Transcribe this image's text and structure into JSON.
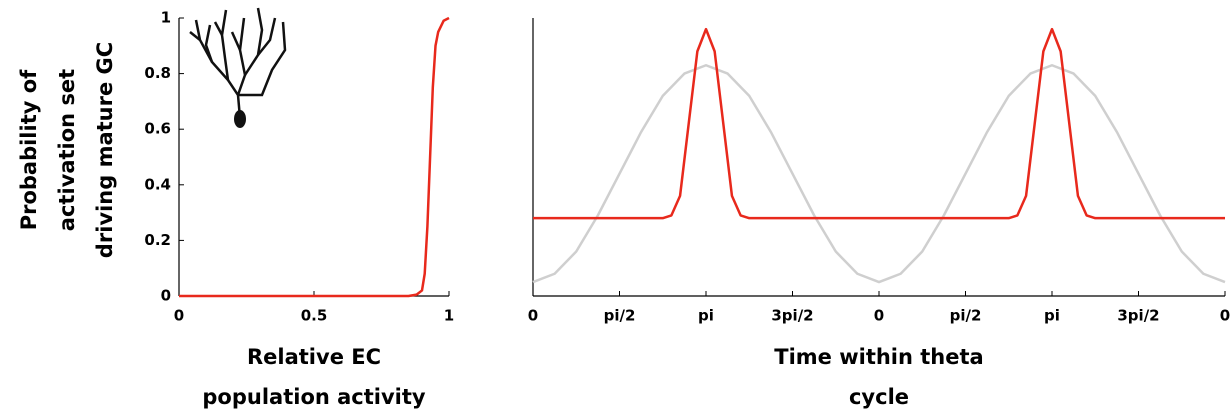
{
  "chart_data": [
    {
      "type": "line",
      "ylabel": [
        "Probability of",
        "activation set",
        "driving mature GC"
      ],
      "xlabel": [
        "Relative EC",
        "population activity"
      ],
      "xlim": [
        0,
        1
      ],
      "xticks": [
        0,
        0.5,
        1
      ],
      "ylim": [
        0,
        1
      ],
      "yticks": [
        0,
        0.2,
        0.4,
        0.6,
        0.8,
        1
      ],
      "grid": false,
      "series": [
        {
          "color": "#e8291c",
          "x": [
            0,
            0.85,
            0.88,
            0.9,
            0.91,
            0.92,
            0.93,
            0.94,
            0.95,
            0.96,
            0.98,
            1.0
          ],
          "values": [
            0,
            0,
            0.005,
            0.02,
            0.08,
            0.25,
            0.5,
            0.75,
            0.9,
            0.95,
            0.99,
            1.0
          ]
        }
      ]
    },
    {
      "type": "line",
      "xlabel": [
        "Time within theta",
        "cycle"
      ],
      "xlim": [
        0,
        8
      ],
      "xticks": [
        {
          "value": 0,
          "label": "0"
        },
        {
          "value": 1,
          "label": "pi/2"
        },
        {
          "value": 2,
          "label": "pi"
        },
        {
          "value": 3,
          "label": "3pi/2"
        },
        {
          "value": 4,
          "label": "0"
        },
        {
          "value": 5,
          "label": "pi/2"
        },
        {
          "value": 6,
          "label": "pi"
        },
        {
          "value": 7,
          "label": "3pi/2"
        },
        {
          "value": 8,
          "label": "0"
        }
      ],
      "ylim": [
        0,
        1
      ],
      "grid": false,
      "series": [
        {
          "color": "#cfcfcf",
          "x": [
            0,
            0.25,
            0.5,
            0.75,
            1,
            1.25,
            1.5,
            1.75,
            2,
            2.25,
            2.5,
            2.75,
            3,
            3.25,
            3.5,
            3.75,
            4,
            4.25,
            4.5,
            4.75,
            5,
            5.25,
            5.5,
            5.75,
            6,
            6.25,
            6.5,
            6.75,
            7,
            7.25,
            7.5,
            7.75,
            8
          ],
          "values": [
            0.05,
            0.08,
            0.16,
            0.29,
            0.44,
            0.59,
            0.72,
            0.8,
            0.83,
            0.8,
            0.72,
            0.59,
            0.44,
            0.29,
            0.16,
            0.08,
            0.05,
            0.08,
            0.16,
            0.29,
            0.44,
            0.59,
            0.72,
            0.8,
            0.83,
            0.8,
            0.72,
            0.59,
            0.44,
            0.29,
            0.16,
            0.08,
            0.05
          ]
        },
        {
          "color": "#e8291c",
          "x": [
            0,
            1.5,
            1.6,
            1.7,
            1.8,
            1.9,
            2.0,
            2.1,
            2.2,
            2.3,
            2.4,
            2.5,
            5.5,
            5.6,
            5.7,
            5.8,
            5.9,
            6.0,
            6.1,
            6.2,
            6.3,
            6.4,
            6.5,
            8
          ],
          "values": [
            0.28,
            0.28,
            0.29,
            0.36,
            0.62,
            0.88,
            0.96,
            0.88,
            0.62,
            0.36,
            0.29,
            0.28,
            0.28,
            0.29,
            0.36,
            0.62,
            0.88,
            0.96,
            0.88,
            0.62,
            0.36,
            0.29,
            0.28,
            0.28
          ]
        }
      ]
    }
  ]
}
